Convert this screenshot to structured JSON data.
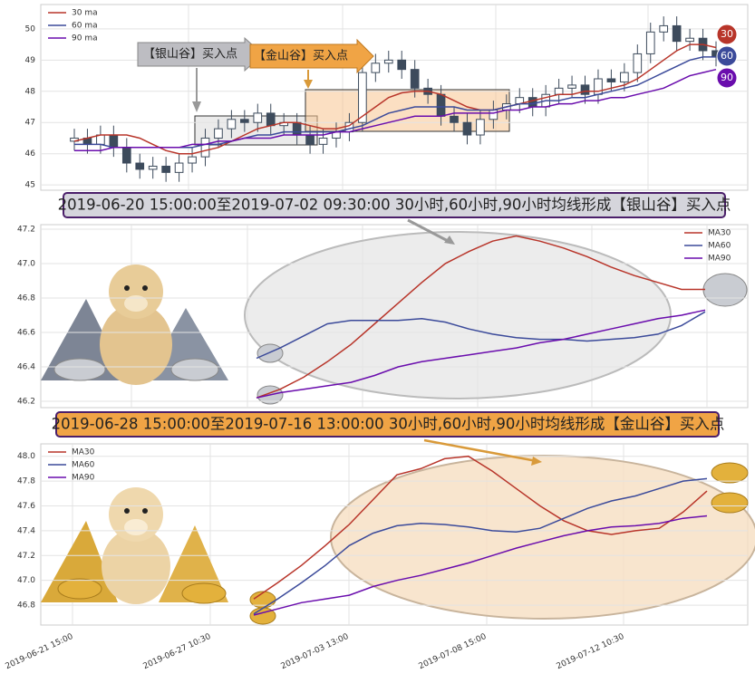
{
  "chart_data": [
    {
      "type": "candlestick",
      "annotations": [
        "【银山谷】买入点",
        "【金山谷】买入点"
      ],
      "badges": [
        "30",
        "60",
        "90"
      ],
      "color": "#3d4b5c",
      "legend": "upper left",
      "grid": true,
      "ylim": [
        44.83,
        50.78
      ],
      "yticks": [
        45,
        46,
        47,
        48,
        49,
        50
      ],
      "open": [
        46.4,
        46.5,
        46.3,
        46.6,
        46.2,
        45.7,
        45.5,
        45.6,
        45.4,
        45.7,
        45.9,
        46.5,
        46.8,
        47.1,
        47.0,
        47.3,
        46.9,
        47.0,
        46.6,
        46.3,
        46.5,
        46.7,
        47.0,
        48.6,
        48.9,
        49.0,
        48.7,
        48.1,
        47.9,
        47.2,
        47.0,
        46.6,
        47.1,
        47.4,
        47.6,
        47.8,
        47.5,
        47.9,
        48.1,
        48.2,
        47.9,
        48.4,
        48.3,
        48.6,
        49.2,
        49.9,
        50.1,
        49.6,
        49.7,
        49.3
      ],
      "high": [
        46.8,
        46.8,
        46.9,
        46.9,
        46.5,
        46.0,
        45.9,
        45.9,
        46.0,
        46.2,
        46.8,
        47.1,
        47.4,
        47.4,
        47.6,
        47.6,
        47.3,
        47.3,
        46.9,
        46.8,
        47.0,
        47.3,
        48.9,
        49.2,
        49.3,
        49.3,
        49.0,
        48.4,
        48.2,
        47.5,
        47.3,
        47.4,
        47.7,
        47.9,
        48.1,
        48.1,
        48.2,
        48.4,
        48.5,
        48.5,
        48.7,
        48.7,
        48.9,
        49.5,
        50.2,
        50.4,
        50.4,
        50.0,
        50.0,
        49.6
      ],
      "low": [
        46.1,
        46.0,
        46.0,
        45.9,
        45.4,
        45.2,
        45.2,
        45.1,
        45.1,
        45.4,
        45.6,
        46.2,
        46.5,
        46.7,
        46.7,
        46.6,
        46.6,
        46.3,
        46.0,
        46.0,
        46.2,
        46.4,
        46.7,
        48.3,
        48.6,
        48.4,
        47.8,
        47.6,
        46.9,
        46.7,
        46.3,
        46.3,
        46.8,
        47.1,
        47.3,
        47.2,
        47.2,
        47.6,
        47.8,
        47.6,
        47.6,
        48.0,
        48.0,
        48.3,
        48.9,
        49.6,
        49.3,
        49.3,
        49.0,
        48.8
      ],
      "close": [
        46.5,
        46.3,
        46.6,
        46.2,
        45.7,
        45.5,
        45.6,
        45.4,
        45.7,
        45.9,
        46.5,
        46.8,
        47.1,
        47.0,
        47.3,
        46.9,
        47.0,
        46.6,
        46.3,
        46.5,
        46.7,
        47.0,
        48.6,
        48.9,
        49.0,
        48.7,
        48.1,
        47.9,
        47.2,
        47.0,
        46.6,
        47.1,
        47.4,
        47.6,
        47.8,
        47.5,
        47.9,
        48.1,
        48.2,
        47.9,
        48.4,
        48.3,
        48.6,
        49.2,
        49.9,
        50.1,
        49.6,
        49.7,
        49.3,
        49.1
      ],
      "series": [
        {
          "name": "30 ma",
          "color": "#b8352a",
          "values": [
            46.4,
            46.5,
            46.6,
            46.6,
            46.6,
            46.5,
            46.3,
            46.1,
            46.0,
            46.0,
            46.1,
            46.2,
            46.4,
            46.6,
            46.8,
            46.9,
            47.0,
            47.0,
            46.9,
            46.8,
            46.8,
            46.9,
            47.2,
            47.5,
            47.8,
            47.95,
            48.0,
            48.0,
            47.9,
            47.7,
            47.5,
            47.4,
            47.4,
            47.5,
            47.6,
            47.7,
            47.8,
            47.9,
            47.9,
            48.0,
            48.0,
            48.1,
            48.2,
            48.4,
            48.7,
            49.0,
            49.3,
            49.5,
            49.5,
            49.4
          ]
        },
        {
          "name": "60 ma",
          "color": "#3b4a9a",
          "values": [
            46.3,
            46.3,
            46.3,
            46.2,
            46.2,
            46.2,
            46.2,
            46.2,
            46.2,
            46.2,
            46.3,
            46.3,
            46.4,
            46.5,
            46.6,
            46.6,
            46.7,
            46.7,
            46.7,
            46.7,
            46.7,
            46.8,
            46.9,
            47.1,
            47.3,
            47.4,
            47.5,
            47.5,
            47.5,
            47.5,
            47.4,
            47.4,
            47.4,
            47.5,
            47.6,
            47.6,
            47.7,
            47.7,
            47.8,
            47.8,
            47.9,
            48.0,
            48.1,
            48.2,
            48.4,
            48.6,
            48.8,
            49.0,
            49.1,
            49.1
          ]
        },
        {
          "name": "90 ma",
          "color": "#6a0dad",
          "values": [
            46.1,
            46.1,
            46.1,
            46.2,
            46.2,
            46.2,
            46.2,
            46.2,
            46.2,
            46.3,
            46.3,
            46.4,
            46.4,
            46.5,
            46.5,
            46.5,
            46.6,
            46.6,
            46.6,
            46.6,
            46.7,
            46.7,
            46.8,
            46.9,
            47.0,
            47.1,
            47.2,
            47.2,
            47.2,
            47.3,
            47.3,
            47.3,
            47.3,
            47.4,
            47.4,
            47.5,
            47.5,
            47.6,
            47.6,
            47.7,
            47.7,
            47.8,
            47.8,
            47.9,
            48.0,
            48.1,
            48.3,
            48.5,
            48.6,
            48.7
          ]
        }
      ]
    },
    {
      "type": "line",
      "title": "2019-06-20 15:00:00至2019-07-02 09:30:00 30小时,60小时,90小时均线形成【银山谷】买入点",
      "legend": "upper right",
      "grid": true,
      "ylim": [
        46.163,
        47.226
      ],
      "yticks": [
        46.2,
        46.4,
        46.6,
        46.8,
        {
          "value": 47,
          "label": "47.0"
        },
        47.2
      ],
      "series": [
        {
          "name": "MA30",
          "color": "#b8352a",
          "values": [
            46.22,
            46.27,
            46.34,
            46.43,
            46.53,
            46.65,
            46.77,
            46.89,
            47.0,
            47.07,
            47.13,
            47.16,
            47.13,
            47.09,
            47.04,
            46.98,
            46.93,
            46.89,
            46.85,
            46.85
          ]
        },
        {
          "name": "MA60",
          "color": "#3b4a9a",
          "values": [
            46.45,
            46.51,
            46.58,
            46.65,
            46.67,
            46.67,
            46.67,
            46.68,
            46.66,
            46.62,
            46.59,
            46.57,
            46.56,
            46.56,
            46.55,
            46.56,
            46.57,
            46.59,
            46.64,
            46.72
          ]
        },
        {
          "name": "MA90",
          "color": "#6a0dad",
          "values": [
            46.22,
            46.25,
            46.27,
            46.29,
            46.31,
            46.35,
            46.4,
            46.43,
            46.45,
            46.47,
            46.49,
            46.51,
            46.54,
            46.56,
            46.59,
            46.62,
            46.65,
            46.68,
            46.7,
            46.73
          ]
        }
      ]
    },
    {
      "type": "line",
      "title": "2019-06-28 15:00:00至2019-07-16 13:00:00 30小时,60小时,90小时均线形成【金山谷】买入点",
      "legend": "upper left",
      "grid": true,
      "ylim": [
        46.64,
        48.1
      ],
      "yticks": [
        46.8,
        {
          "value": 47,
          "label": "47.0"
        },
        47.2,
        47.4,
        47.6,
        47.8,
        {
          "value": 48,
          "label": "48.0"
        }
      ],
      "x_axis_labels": [
        "2019-06-21 15:00",
        "2019-06-27 10:30",
        "2019-07-03 13:00",
        "2019-07-08 15:00",
        "2019-07-12 10:30"
      ],
      "series": [
        {
          "name": "MA30",
          "color": "#b8352a",
          "values": [
            46.85,
            46.98,
            47.12,
            47.28,
            47.45,
            47.65,
            47.85,
            47.9,
            47.98,
            48.0,
            47.88,
            47.74,
            47.6,
            47.48,
            47.4,
            47.37,
            47.4,
            47.42,
            47.55,
            47.72
          ]
        },
        {
          "name": "MA60",
          "color": "#3b4a9a",
          "values": [
            46.73,
            46.85,
            46.98,
            47.12,
            47.28,
            47.38,
            47.44,
            47.46,
            47.45,
            47.43,
            47.4,
            47.39,
            47.42,
            47.5,
            47.58,
            47.64,
            47.68,
            47.74,
            47.8,
            47.82
          ]
        },
        {
          "name": "MA90",
          "color": "#6a0dad",
          "values": [
            46.72,
            46.77,
            46.82,
            46.85,
            46.88,
            46.95,
            47.0,
            47.04,
            47.09,
            47.14,
            47.2,
            47.26,
            47.31,
            47.36,
            47.4,
            47.43,
            47.44,
            47.46,
            47.5,
            47.52
          ]
        }
      ]
    }
  ]
}
